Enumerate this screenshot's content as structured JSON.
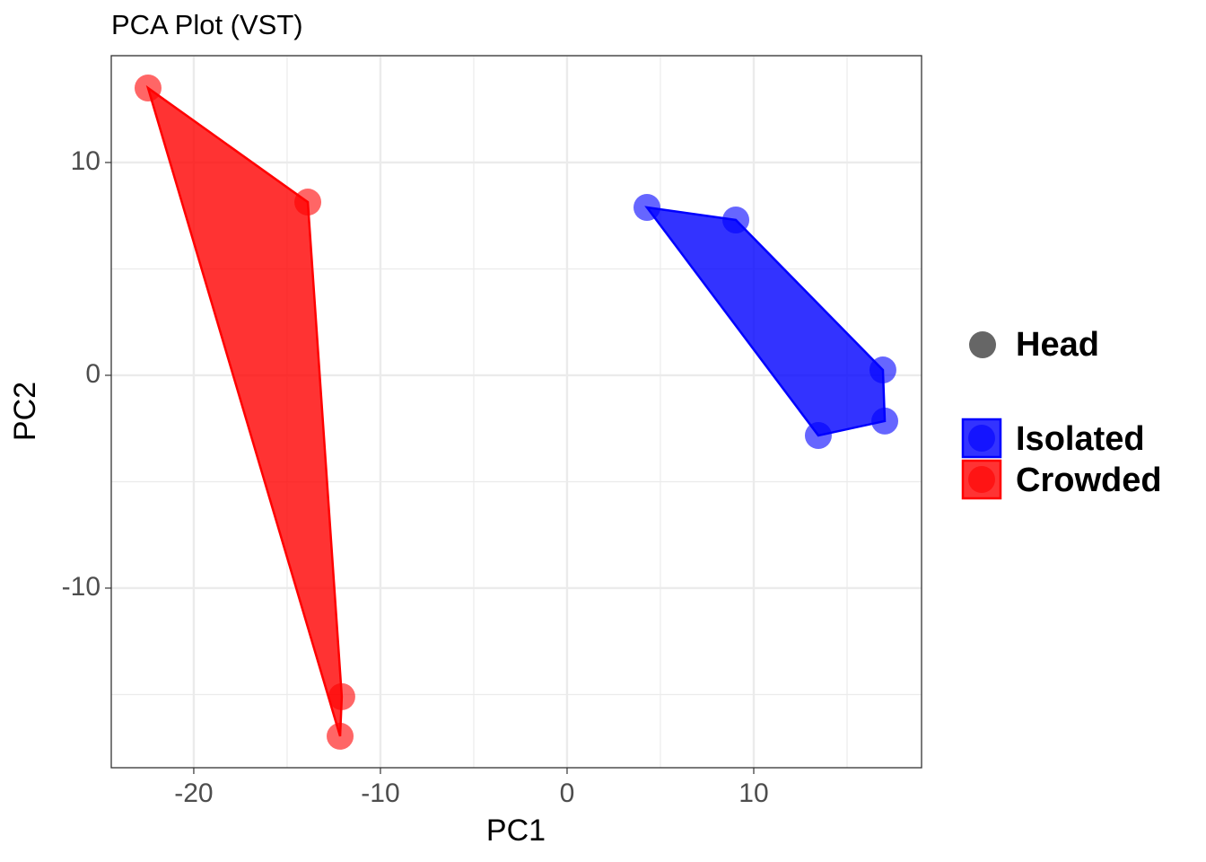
{
  "chart_data": {
    "type": "scatter",
    "title": "PCA Plot (VST)",
    "x_label": "PC1",
    "y_label": "PC2",
    "xlim": [
      -24.42,
      18.99
    ],
    "ylim": [
      -18.44,
      15.02
    ],
    "xticks": [
      -20,
      -10,
      0,
      10
    ],
    "yticks": [
      -10,
      0,
      10
    ],
    "grid": true,
    "minor_grid": true,
    "hull": true,
    "shape_legend": {
      "name": "Head",
      "color": "#666666"
    },
    "series": [
      {
        "name": "Isolated",
        "color": "#0000ff",
        "x": [
          4.28,
          9.04,
          16.92,
          17.02,
          13.46
        ],
        "y": [
          7.89,
          7.3,
          0.25,
          -2.15,
          -2.83
        ]
      },
      {
        "name": "Crowded",
        "color": "#ff0000",
        "x": [
          -22.45,
          -13.89,
          -12.07,
          -12.16
        ],
        "y": [
          13.5,
          8.14,
          -15.1,
          -16.96
        ]
      }
    ],
    "legend_position": "right"
  }
}
